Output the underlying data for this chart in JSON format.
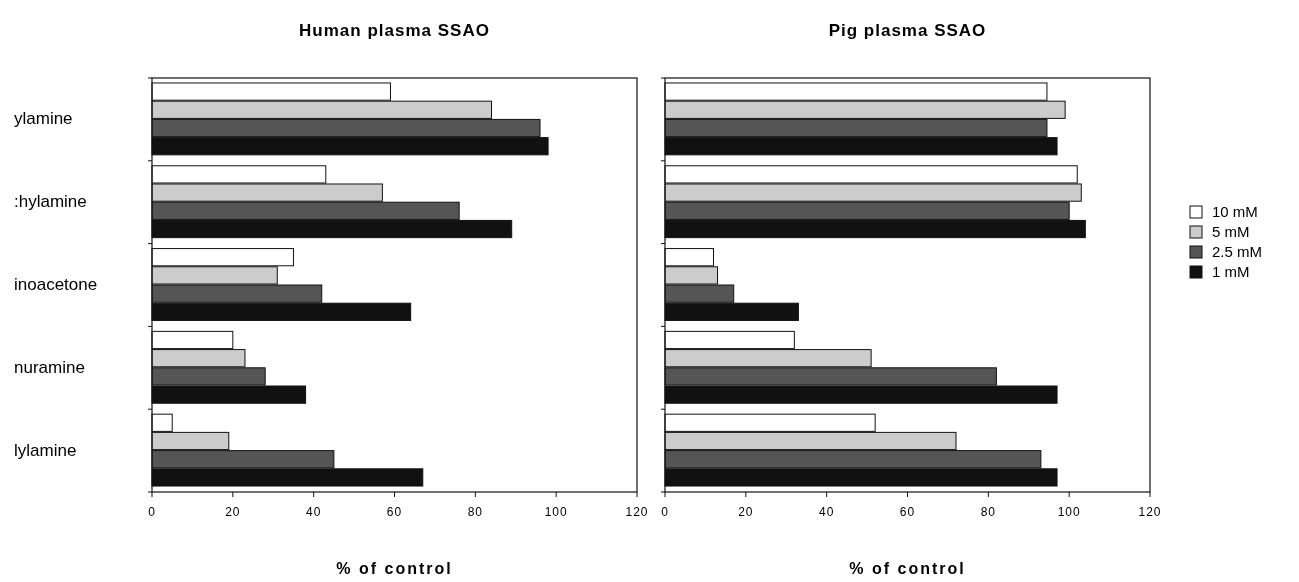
{
  "chart_data": [
    {
      "type": "bar",
      "orientation": "horizontal",
      "title": "Human plasma SSAO",
      "xlabel": "% of control",
      "categories": [
        "ylamine",
        ":hylamine",
        "inoacetone",
        "nuramine",
        "lylamine"
      ],
      "xlim": [
        0,
        120
      ],
      "xticks": [
        0,
        20,
        40,
        60,
        80,
        100,
        120
      ],
      "grid": false,
      "legend": false,
      "series": [
        {
          "color": "#ffffff",
          "values": [
            59,
            43,
            35,
            20,
            5
          ]
        },
        {
          "color": "#cccccc",
          "values": [
            84,
            57,
            31,
            23,
            19
          ]
        },
        {
          "color": "#555555",
          "values": [
            96,
            76,
            42,
            28,
            45
          ]
        },
        {
          "color": "#111111",
          "values": [
            98,
            89,
            64,
            38,
            67
          ]
        }
      ]
    },
    {
      "type": "bar",
      "orientation": "horizontal",
      "title": "Pig plasma SSAO",
      "xlabel": "% of control",
      "categories": [
        null,
        null,
        null,
        null,
        null
      ],
      "xlim": [
        0,
        120
      ],
      "xticks": [
        0,
        20,
        40,
        60,
        80,
        100,
        120
      ],
      "grid": false,
      "legend": "right",
      "series": [
        {
          "name": "10 mM",
          "color": "#ffffff",
          "values": [
            94.5,
            102,
            12,
            32,
            52
          ]
        },
        {
          "name": "5 mM",
          "color": "#cccccc",
          "values": [
            99,
            103,
            13,
            51,
            72
          ]
        },
        {
          "name": "2.5 mM",
          "color": "#555555",
          "values": [
            94.5,
            100,
            17,
            82,
            93
          ]
        },
        {
          "name": "1 mM",
          "color": "#111111",
          "values": [
            97,
            104,
            33,
            97,
            97
          ]
        }
      ]
    }
  ]
}
